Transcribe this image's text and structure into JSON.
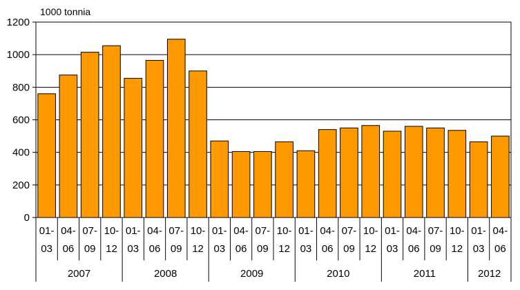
{
  "chart_data": {
    "type": "bar",
    "unit_label": "1000 tonnia",
    "ylim": [
      0,
      1200
    ],
    "yticks": [
      0,
      200,
      400,
      600,
      800,
      1000,
      1200
    ],
    "grid": true,
    "bar_color": "#ff9900",
    "bar_stroke": "#000000",
    "groups": [
      {
        "year": "2007",
        "quarters": [
          "01-\n03",
          "04-\n06",
          "07-\n09",
          "10-\n12"
        ],
        "values": [
          760,
          875,
          1015,
          1055
        ]
      },
      {
        "year": "2008",
        "quarters": [
          "01-\n03",
          "04-\n06",
          "07-\n09",
          "10-\n12"
        ],
        "values": [
          855,
          965,
          1095,
          900
        ]
      },
      {
        "year": "2009",
        "quarters": [
          "01-\n03",
          "04-\n06",
          "07-\n09",
          "10-\n12"
        ],
        "values": [
          470,
          405,
          405,
          465
        ]
      },
      {
        "year": "2010",
        "quarters": [
          "01-\n03",
          "04-\n06",
          "07-\n09",
          "10-\n12"
        ],
        "values": [
          410,
          540,
          550,
          565
        ]
      },
      {
        "year": "2011",
        "quarters": [
          "01-\n03",
          "04-\n06",
          "07-\n09",
          "10-\n12"
        ],
        "values": [
          530,
          560,
          550,
          535
        ]
      },
      {
        "year": "2012",
        "quarters": [
          "01-\n03",
          "04-\n06"
        ],
        "values": [
          465,
          500
        ]
      }
    ]
  }
}
